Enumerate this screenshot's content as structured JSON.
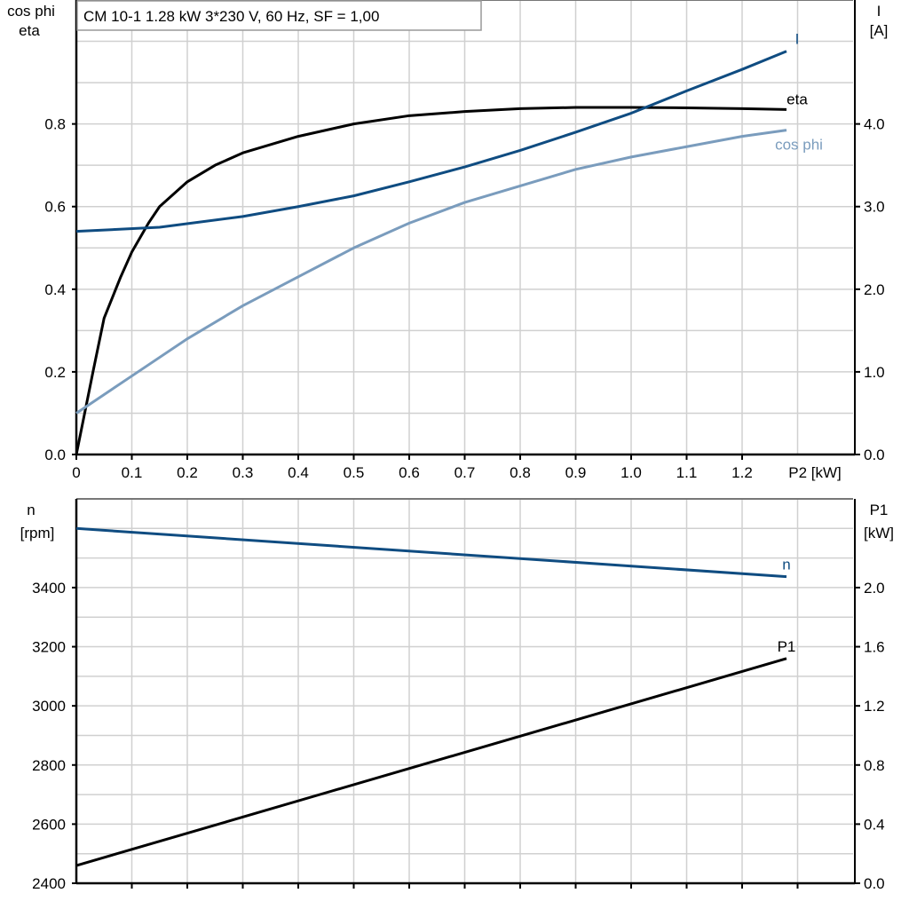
{
  "chart_data": [
    {
      "type": "line",
      "title": "CM 10-1   1.28 kW   3*230 V, 60 Hz, SF = 1,00",
      "xlabel": "P2 [kW]",
      "ylabel_left": [
        "cos phi",
        "eta"
      ],
      "ylabel_right": [
        "I",
        "[A]"
      ],
      "xlim": [
        0,
        1.4
      ],
      "ylim_left": [
        0,
        1.1
      ],
      "ylim_right": [
        0,
        5.5
      ],
      "x_ticks": [
        "0",
        "0.1",
        "0.2",
        "0.3",
        "0.4",
        "0.5",
        "0.6",
        "0.7",
        "0.8",
        "0.9",
        "1.0",
        "1.1",
        "1.2"
      ],
      "y_ticks_left": [
        "0.0",
        "0.2",
        "0.4",
        "0.6",
        "0.8"
      ],
      "y_ticks_right": [
        "0.0",
        "1.0",
        "2.0",
        "3.0",
        "4.0"
      ],
      "grid": true,
      "series": [
        {
          "name": "eta",
          "axis": "left",
          "color": "#000000",
          "x": [
            0,
            0.015,
            0.03,
            0.05,
            0.08,
            0.1,
            0.13,
            0.15,
            0.2,
            0.25,
            0.3,
            0.4,
            0.5,
            0.6,
            0.7,
            0.8,
            0.9,
            1.0,
            1.1,
            1.2,
            1.28
          ],
          "y": [
            0,
            0.1,
            0.2,
            0.33,
            0.43,
            0.49,
            0.56,
            0.6,
            0.66,
            0.7,
            0.73,
            0.77,
            0.8,
            0.82,
            0.83,
            0.837,
            0.84,
            0.84,
            0.839,
            0.837,
            0.835
          ]
        },
        {
          "name": "cos phi",
          "axis": "left",
          "color": "#7a9cbd",
          "x": [
            0,
            0.1,
            0.2,
            0.3,
            0.4,
            0.5,
            0.6,
            0.7,
            0.8,
            0.9,
            1.0,
            1.1,
            1.2,
            1.28
          ],
          "y": [
            0.1,
            0.19,
            0.28,
            0.36,
            0.43,
            0.5,
            0.56,
            0.61,
            0.65,
            0.69,
            0.72,
            0.745,
            0.77,
            0.785
          ]
        },
        {
          "name": "I",
          "axis": "right",
          "color": "#0f4c81",
          "x": [
            0,
            0.15,
            0.3,
            0.4,
            0.5,
            0.6,
            0.7,
            0.8,
            0.9,
            1.0,
            1.1,
            1.2,
            1.28
          ],
          "y": [
            2.7,
            2.75,
            2.88,
            3.0,
            3.13,
            3.3,
            3.48,
            3.68,
            3.9,
            4.13,
            4.4,
            4.66,
            4.88
          ]
        }
      ]
    },
    {
      "type": "line",
      "xlabel": "",
      "ylabel_left": [
        "n",
        "[rpm]"
      ],
      "ylabel_right": [
        "P1",
        "[kW]"
      ],
      "xlim": [
        0,
        1.4
      ],
      "ylim_left": [
        2400,
        3700
      ],
      "ylim_right": [
        0,
        2.6
      ],
      "y_ticks_left": [
        "2400",
        "2600",
        "2800",
        "3000",
        "3200",
        "3400"
      ],
      "y_ticks_right": [
        "0.0",
        "0.4",
        "0.8",
        "1.2",
        "1.6",
        "2.0"
      ],
      "grid": true,
      "series": [
        {
          "name": "n",
          "axis": "left",
          "color": "#0f4c81",
          "x": [
            0,
            1.28
          ],
          "y": [
            3600,
            3437
          ]
        },
        {
          "name": "P1",
          "axis": "right",
          "color": "#000000",
          "x": [
            0,
            1.28
          ],
          "y": [
            0.12,
            1.52
          ]
        }
      ]
    }
  ]
}
